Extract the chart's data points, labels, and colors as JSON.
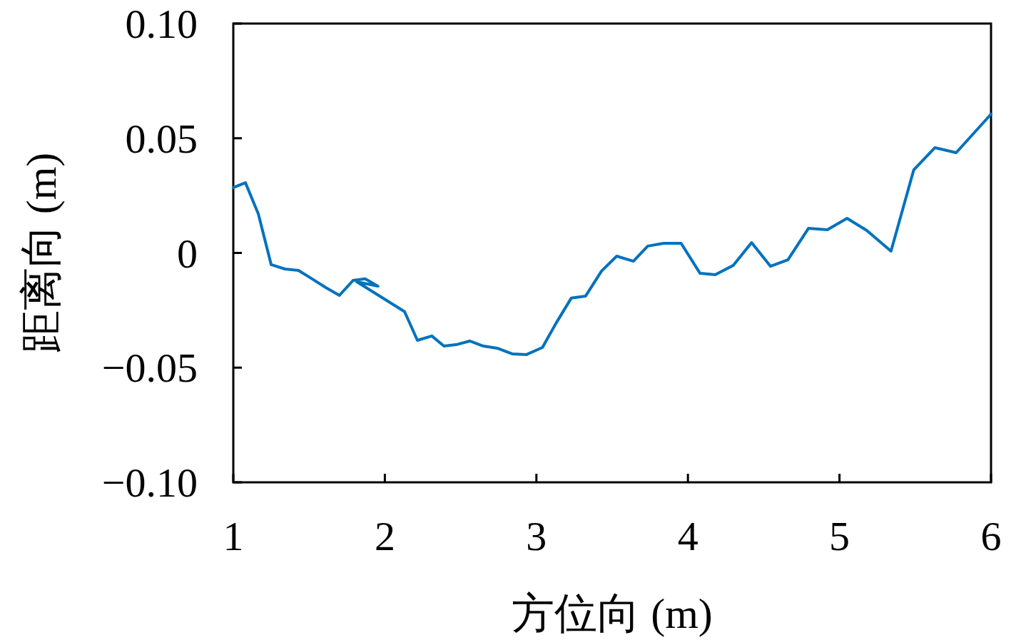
{
  "chart_data": {
    "type": "line",
    "xlabel": "方位向 (m)",
    "ylabel": "距离向 (m)",
    "xlim": [
      1,
      6
    ],
    "ylim": [
      -0.1,
      0.1
    ],
    "xticks": [
      1,
      2,
      3,
      4,
      5,
      6
    ],
    "yticks": [
      {
        "value": -0.1,
        "label": "−0.10"
      },
      {
        "value": -0.05,
        "label": "−0.05"
      },
      0,
      0.05,
      {
        "value": 0.1,
        "label": "0.10"
      }
    ],
    "grid": false,
    "marker": "none",
    "line_style": "solid",
    "series": [
      {
        "color": "#0072bd",
        "x": [
          1.0,
          1.08,
          1.165,
          1.25,
          1.34,
          1.43,
          1.52,
          1.61,
          1.7,
          1.79,
          1.87,
          1.955,
          1.815,
          2.13,
          2.215,
          2.31,
          2.39,
          2.47,
          2.56,
          2.65,
          2.74,
          2.84,
          2.935,
          3.04,
          3.13,
          3.23,
          3.325,
          3.43,
          3.53,
          3.64,
          3.735,
          3.84,
          3.955,
          4.08,
          4.18,
          4.3,
          4.42,
          4.545,
          4.66,
          4.795,
          4.92,
          5.05,
          5.18,
          5.34,
          5.49,
          5.63,
          5.77,
          6.0
        ],
        "values": [
          0.0285,
          0.0306,
          0.017,
          -0.0051,
          -0.007,
          -0.0076,
          -0.0113,
          -0.0151,
          -0.0185,
          -0.012,
          -0.0113,
          -0.0145,
          -0.0126,
          -0.0256,
          -0.0381,
          -0.0362,
          -0.0406,
          -0.04,
          -0.0384,
          -0.0406,
          -0.0415,
          -0.044,
          -0.0443,
          -0.0412,
          -0.0306,
          -0.0197,
          -0.0188,
          -0.0079,
          -0.0014,
          -0.0036,
          0.003,
          0.0042,
          0.0042,
          -0.0089,
          -0.0095,
          -0.0054,
          0.0045,
          -0.0058,
          -0.003,
          0.0107,
          0.0101,
          0.0151,
          0.0098,
          0.0008,
          0.0362,
          0.0459,
          0.0437,
          0.0605
        ]
      }
    ]
  }
}
